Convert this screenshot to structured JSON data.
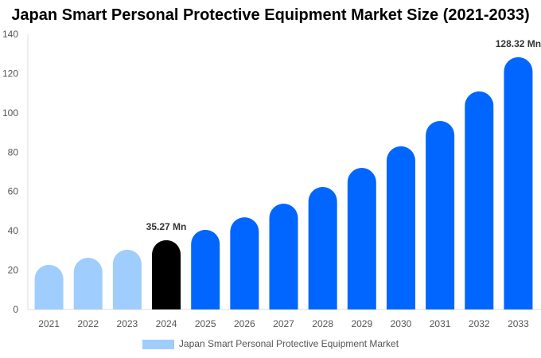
{
  "chart_data": {
    "type": "bar",
    "title": "Japan Smart Personal Protective Equipment Market Size (2021-2033)",
    "categories": [
      "2021",
      "2022",
      "2023",
      "2024",
      "2025",
      "2026",
      "2027",
      "2028",
      "2029",
      "2030",
      "2031",
      "2032",
      "2033"
    ],
    "series": [
      {
        "name": "Japan Smart Personal Protective Equipment Market",
        "values": [
          22.7,
          26.3,
          30.4,
          35.27,
          40.5,
          46.9,
          53.8,
          62.3,
          72.0,
          83.0,
          95.9,
          110.9,
          128.32
        ]
      }
    ],
    "ylim": [
      0,
      140
    ],
    "yticks": [
      0,
      20,
      40,
      60,
      80,
      100,
      120,
      140
    ],
    "annotations": [
      {
        "category": "2024",
        "label": "35.27 Mn"
      },
      {
        "category": "2033",
        "label": "128.32 Mn"
      }
    ],
    "colors": {
      "historical": "#9fcdfd",
      "base_year": "#000000",
      "forecast": "#0066ff"
    },
    "legend_placement": "bottom",
    "grid": false
  }
}
